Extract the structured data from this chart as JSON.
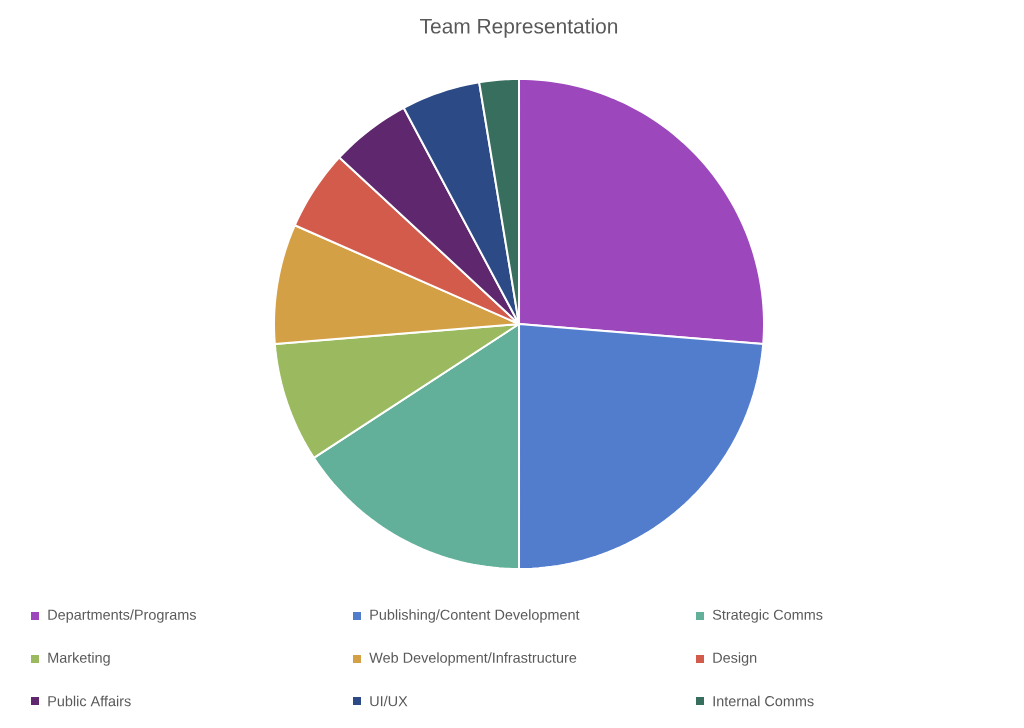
{
  "chart_data": {
    "type": "pie",
    "title": "Team Representation",
    "categories": [
      "Departments/Programs",
      "Publishing/Content Development",
      "Strategic Comms",
      "Marketing",
      "Web Development/Infrastructure",
      "Design",
      "Public Affairs",
      "UI/UX",
      "Internal Comms"
    ],
    "values": [
      26.3,
      23.7,
      15.8,
      7.9,
      7.9,
      5.3,
      5.3,
      5.2,
      2.6
    ],
    "colors": [
      "#9d47bd",
      "#527dcd",
      "#63b09a",
      "#9bba5f",
      "#d4a046",
      "#d35b4b",
      "#5e276e",
      "#2b4a86",
      "#386e5d"
    ],
    "legend": "bottom"
  }
}
